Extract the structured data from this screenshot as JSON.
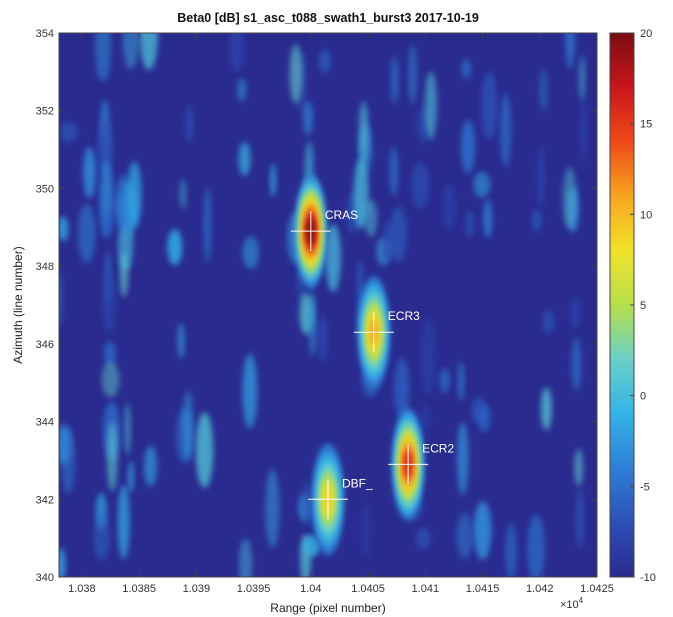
{
  "chart_data": {
    "type": "heatmap",
    "title": "Beta0 [dB] s1_asc_t088_swath1_burst3 2017-10-19",
    "xlabel": "Range (pixel number)",
    "ylabel": "Azimuth (line number)",
    "x_exponent_label": "×10",
    "x_exponent_power": "4",
    "xlim": [
      1.0378,
      1.0425
    ],
    "ylim": [
      340,
      354
    ],
    "xticks": [
      "1.038",
      "1.0385",
      "1.039",
      "1.0395",
      "1.04",
      "1.0405",
      "1.041",
      "1.0415",
      "1.042",
      "1.0425"
    ],
    "yticks": [
      "340",
      "342",
      "344",
      "346",
      "348",
      "350",
      "352",
      "354"
    ],
    "colorbar": {
      "clim": [
        -10,
        20
      ],
      "ticks": [
        "-10",
        "-5",
        "0",
        "5",
        "10",
        "15",
        "20"
      ],
      "colormap": "parula-jet",
      "colors": [
        "#2a2b8f",
        "#2d4fb8",
        "#2f7fd6",
        "#33b3e8",
        "#6ad0c8",
        "#b6e04a",
        "#f2e12a",
        "#f7a51f",
        "#ef4a18",
        "#c8161c",
        "#7a0d10"
      ]
    },
    "background_level_db": -7,
    "targets": [
      {
        "label": "CRAS",
        "x": 1.04,
        "y": 348.9,
        "peak_db": 20
      },
      {
        "label": "ECR3",
        "x": 1.04055,
        "y": 346.3,
        "peak_db": 11
      },
      {
        "label": "ECR2",
        "x": 1.04085,
        "y": 342.9,
        "peak_db": 16
      },
      {
        "label": "DBF_",
        "x": 1.04015,
        "y": 342.0,
        "peak_db": 9
      }
    ]
  }
}
